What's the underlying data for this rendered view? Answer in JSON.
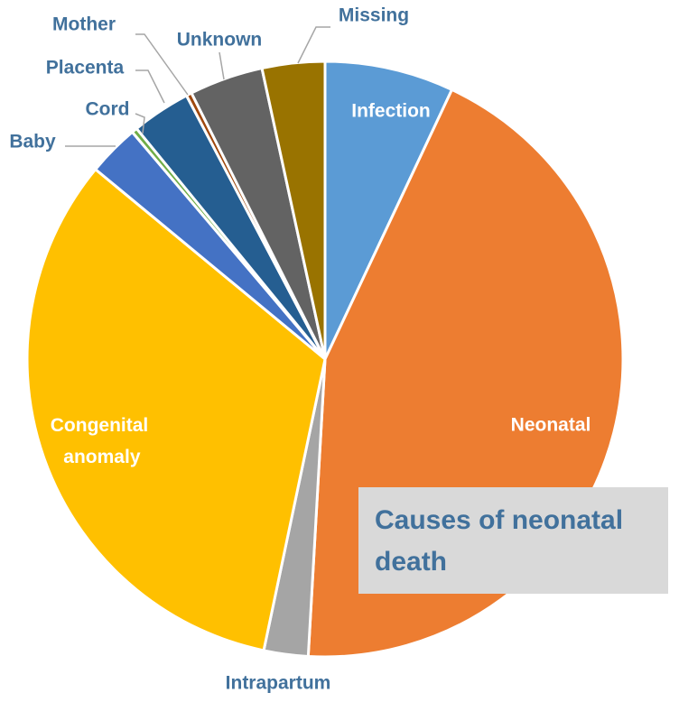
{
  "chart_data": {
    "type": "pie",
    "title": "Causes of neonatal death",
    "categories": [
      "Infection",
      "Neonatal",
      "Intrapartum",
      "Congenital anomaly",
      "Baby",
      "Cord",
      "Placenta",
      "Mother",
      "Unknown",
      "Missing"
    ],
    "values": [
      7,
      43.9,
      2.4,
      32.7,
      2.8,
      0.3,
      3.2,
      0.3,
      4,
      3.4
    ],
    "colors": [
      "#5b9bd5",
      "#ed7d31",
      "#a5a5a5",
      "#ffc000",
      "#4472c4",
      "#70ad47",
      "#255e91",
      "#9e480e",
      "#636363",
      "#997300"
    ]
  }
}
